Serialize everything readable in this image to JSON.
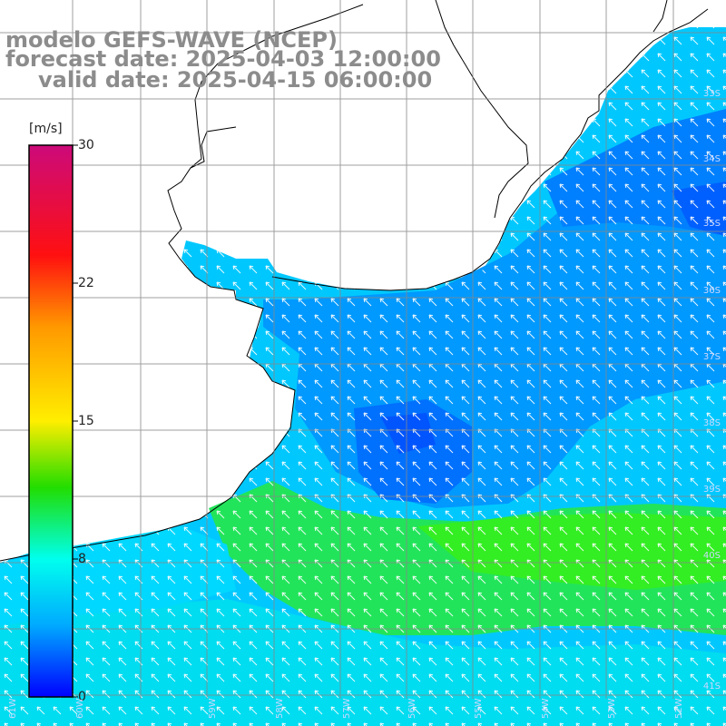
{
  "header": {
    "model": "modelo GEFS-WAVE (NCEP)",
    "forecast": "forecast date: 2025-04-03 12:00:00",
    "valid": "valid date: 2025-04-15 06:00:00"
  },
  "colorbar": {
    "unit": "[m/s]",
    "ticks": [
      "30",
      "22",
      "15",
      "8",
      "0"
    ],
    "colors": [
      "#cc0a7a",
      "#ff2200",
      "#ffcc00",
      "#00dd00",
      "#00ffee",
      "#00aaff",
      "#0000ff"
    ]
  },
  "map": {
    "ocean_colors": {
      "light_blue": "#00c8ff",
      "mid_blue": "#0096ff",
      "dark_blue": "#0060ff",
      "cyan": "#00e6e6",
      "green": "#22ee22"
    },
    "land_color": "#ffffff",
    "coast_color": "#000000",
    "grid_color": "#888888",
    "arrow_color": "#ffffff",
    "arrow_direction": "from south-east toward north-west"
  },
  "lat_labels": [
    "33S",
    "34S",
    "35S",
    "36S",
    "37S",
    "38S",
    "39S",
    "40S",
    "41S"
  ],
  "lon_labels": [
    "61W",
    "60W",
    "59W",
    "58W",
    "57W",
    "56W",
    "55W",
    "54W",
    "53W",
    "52W"
  ]
}
